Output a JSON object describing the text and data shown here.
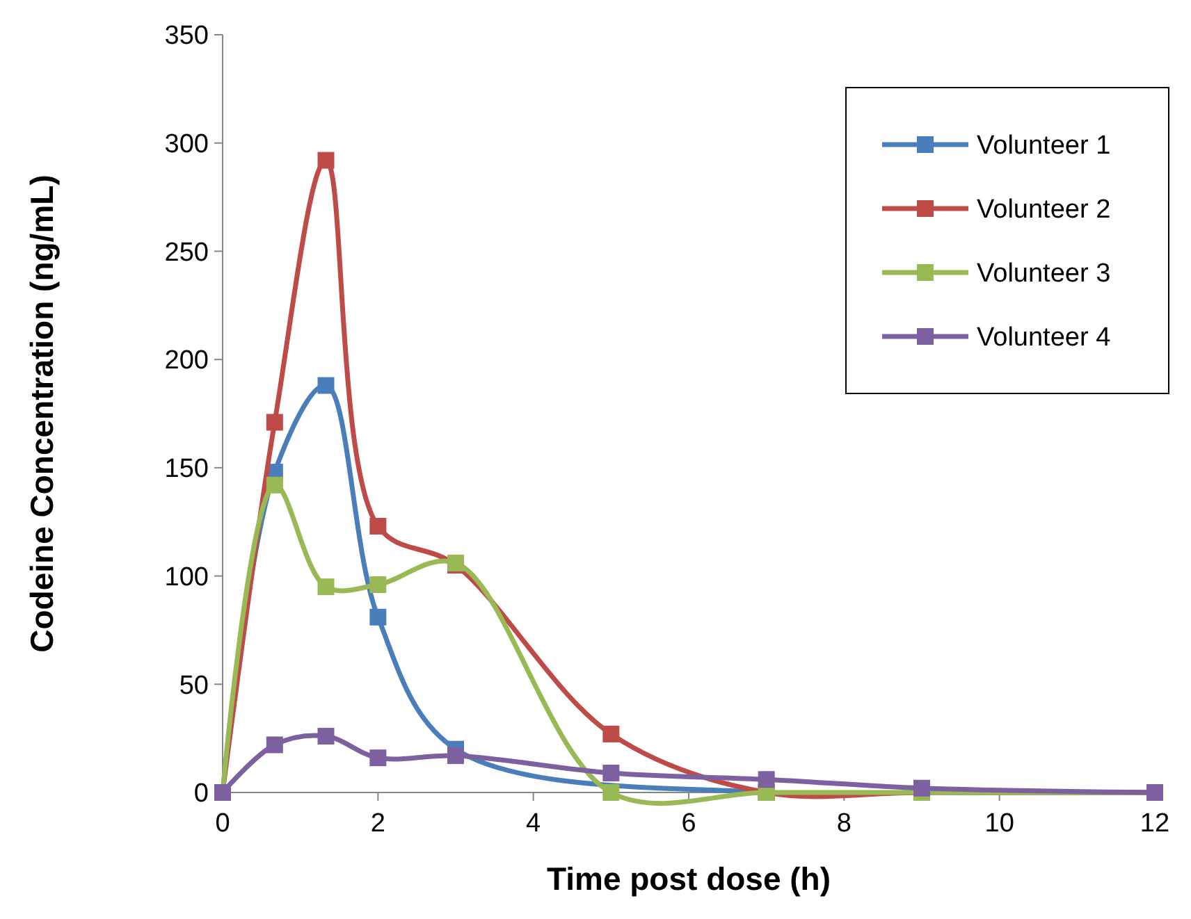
{
  "chart_data": {
    "type": "line",
    "xlabel": "Time post dose (h)",
    "ylabel": "Codeine Concentration (ng/mL)",
    "x": [
      0,
      0.67,
      1.33,
      2,
      3,
      5,
      7,
      9,
      12
    ],
    "series": [
      {
        "name": "Volunteer 1",
        "color": "#4a7ebb",
        "values": [
          0,
          148,
          188,
          81,
          20,
          null,
          0,
          0,
          0
        ]
      },
      {
        "name": "Volunteer 2",
        "color": "#be4b48",
        "values": [
          0,
          171,
          292,
          123,
          105,
          27,
          0,
          0,
          0
        ]
      },
      {
        "name": "Volunteer 3",
        "color": "#98b954",
        "values": [
          0,
          142,
          95,
          96,
          106,
          0,
          0,
          0,
          0
        ]
      },
      {
        "name": "Volunteer 4",
        "color": "#7d60a0",
        "values": [
          0,
          22,
          26,
          16,
          17,
          9,
          6,
          2,
          0
        ]
      }
    ],
    "xlim": [
      0,
      12
    ],
    "xticks": [
      0,
      2,
      4,
      6,
      8,
      10,
      12
    ],
    "ylim": [
      0,
      350
    ],
    "yticks": [
      0,
      50,
      100,
      150,
      200,
      250,
      300,
      350
    ],
    "grid": false,
    "legend": "top right",
    "marker": "square",
    "line_style": "solid"
  }
}
